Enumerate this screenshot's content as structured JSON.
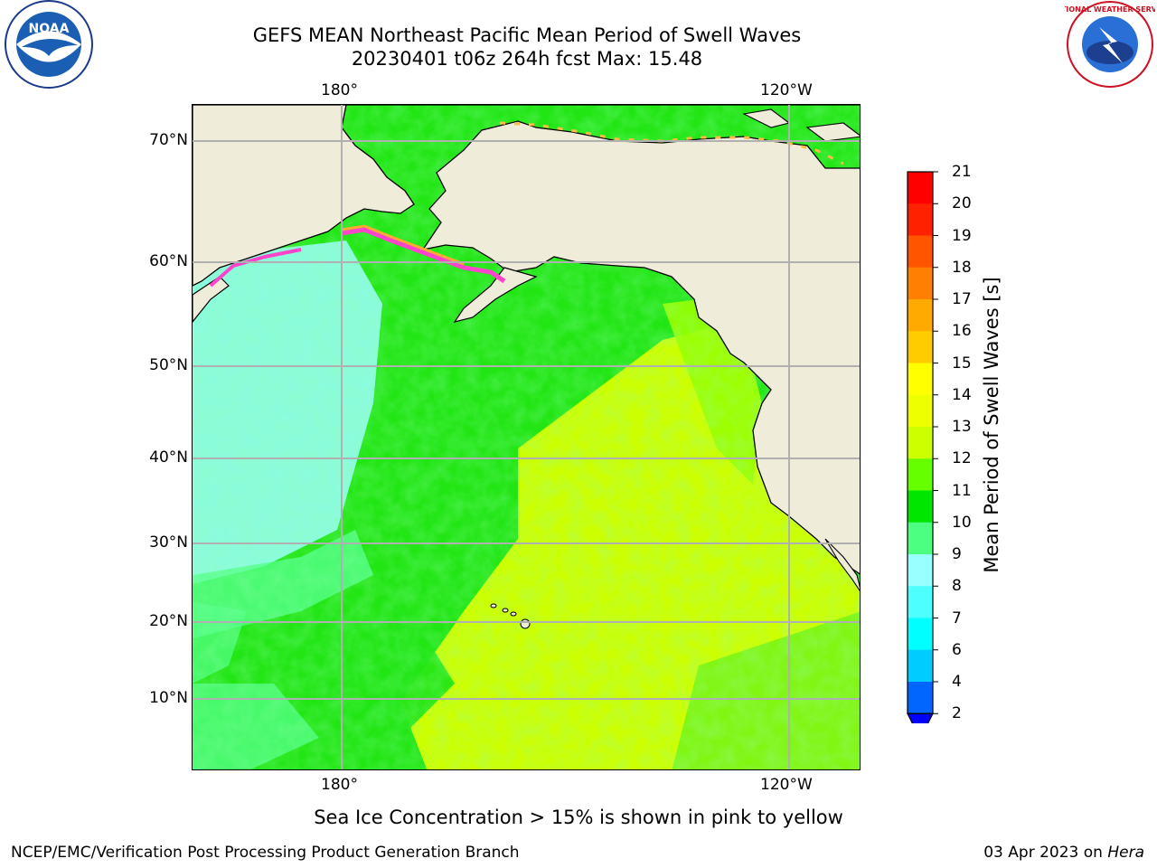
{
  "header": {
    "title_line1": "GEFS MEAN Northeast Pacific Mean Period of Swell Waves",
    "title_line2": "20230401 t06z 264h fcst   Max: 15.48"
  },
  "map": {
    "lat_ticks": [
      "70°N",
      "60°N",
      "50°N",
      "40°N",
      "30°N",
      "20°N",
      "10°N"
    ],
    "lon_ticks": [
      "180°",
      "120°W"
    ]
  },
  "colorbar": {
    "label": "Mean Period of Swell Waves [s]",
    "levels": [
      2,
      4,
      6,
      7,
      8,
      9,
      10,
      11,
      12,
      13,
      14,
      15,
      16,
      17,
      18,
      19,
      20,
      21
    ],
    "tick_labels": [
      "21",
      "20",
      "19",
      "18",
      "17",
      "16",
      "15",
      "14",
      "13",
      "12",
      "11",
      "10",
      "9",
      "8",
      "7",
      "6",
      "4",
      "2"
    ],
    "colors": [
      "#0000ff",
      "#0066ff",
      "#00ccff",
      "#00ffff",
      "#4dffff",
      "#99ffff",
      "#4dff80",
      "#00e600",
      "#66ff00",
      "#ccff00",
      "#eeff00",
      "#ffff00",
      "#ffcc00",
      "#ffaa00",
      "#ff8000",
      "#ff5500",
      "#ff2200",
      "#ff0000"
    ],
    "extend": "min"
  },
  "subtitle": "Sea Ice Concentration > 15% is shown in pink to yellow",
  "footer": {
    "left": "NCEP/EMC/Verification Post Processing Product Generation Branch",
    "right_date": "03 Apr 2023 on",
    "right_host": "Hera"
  },
  "logos": {
    "noaa_text": "NOAA",
    "nws_text": "NATIONAL WEATHER SERVICE"
  }
}
